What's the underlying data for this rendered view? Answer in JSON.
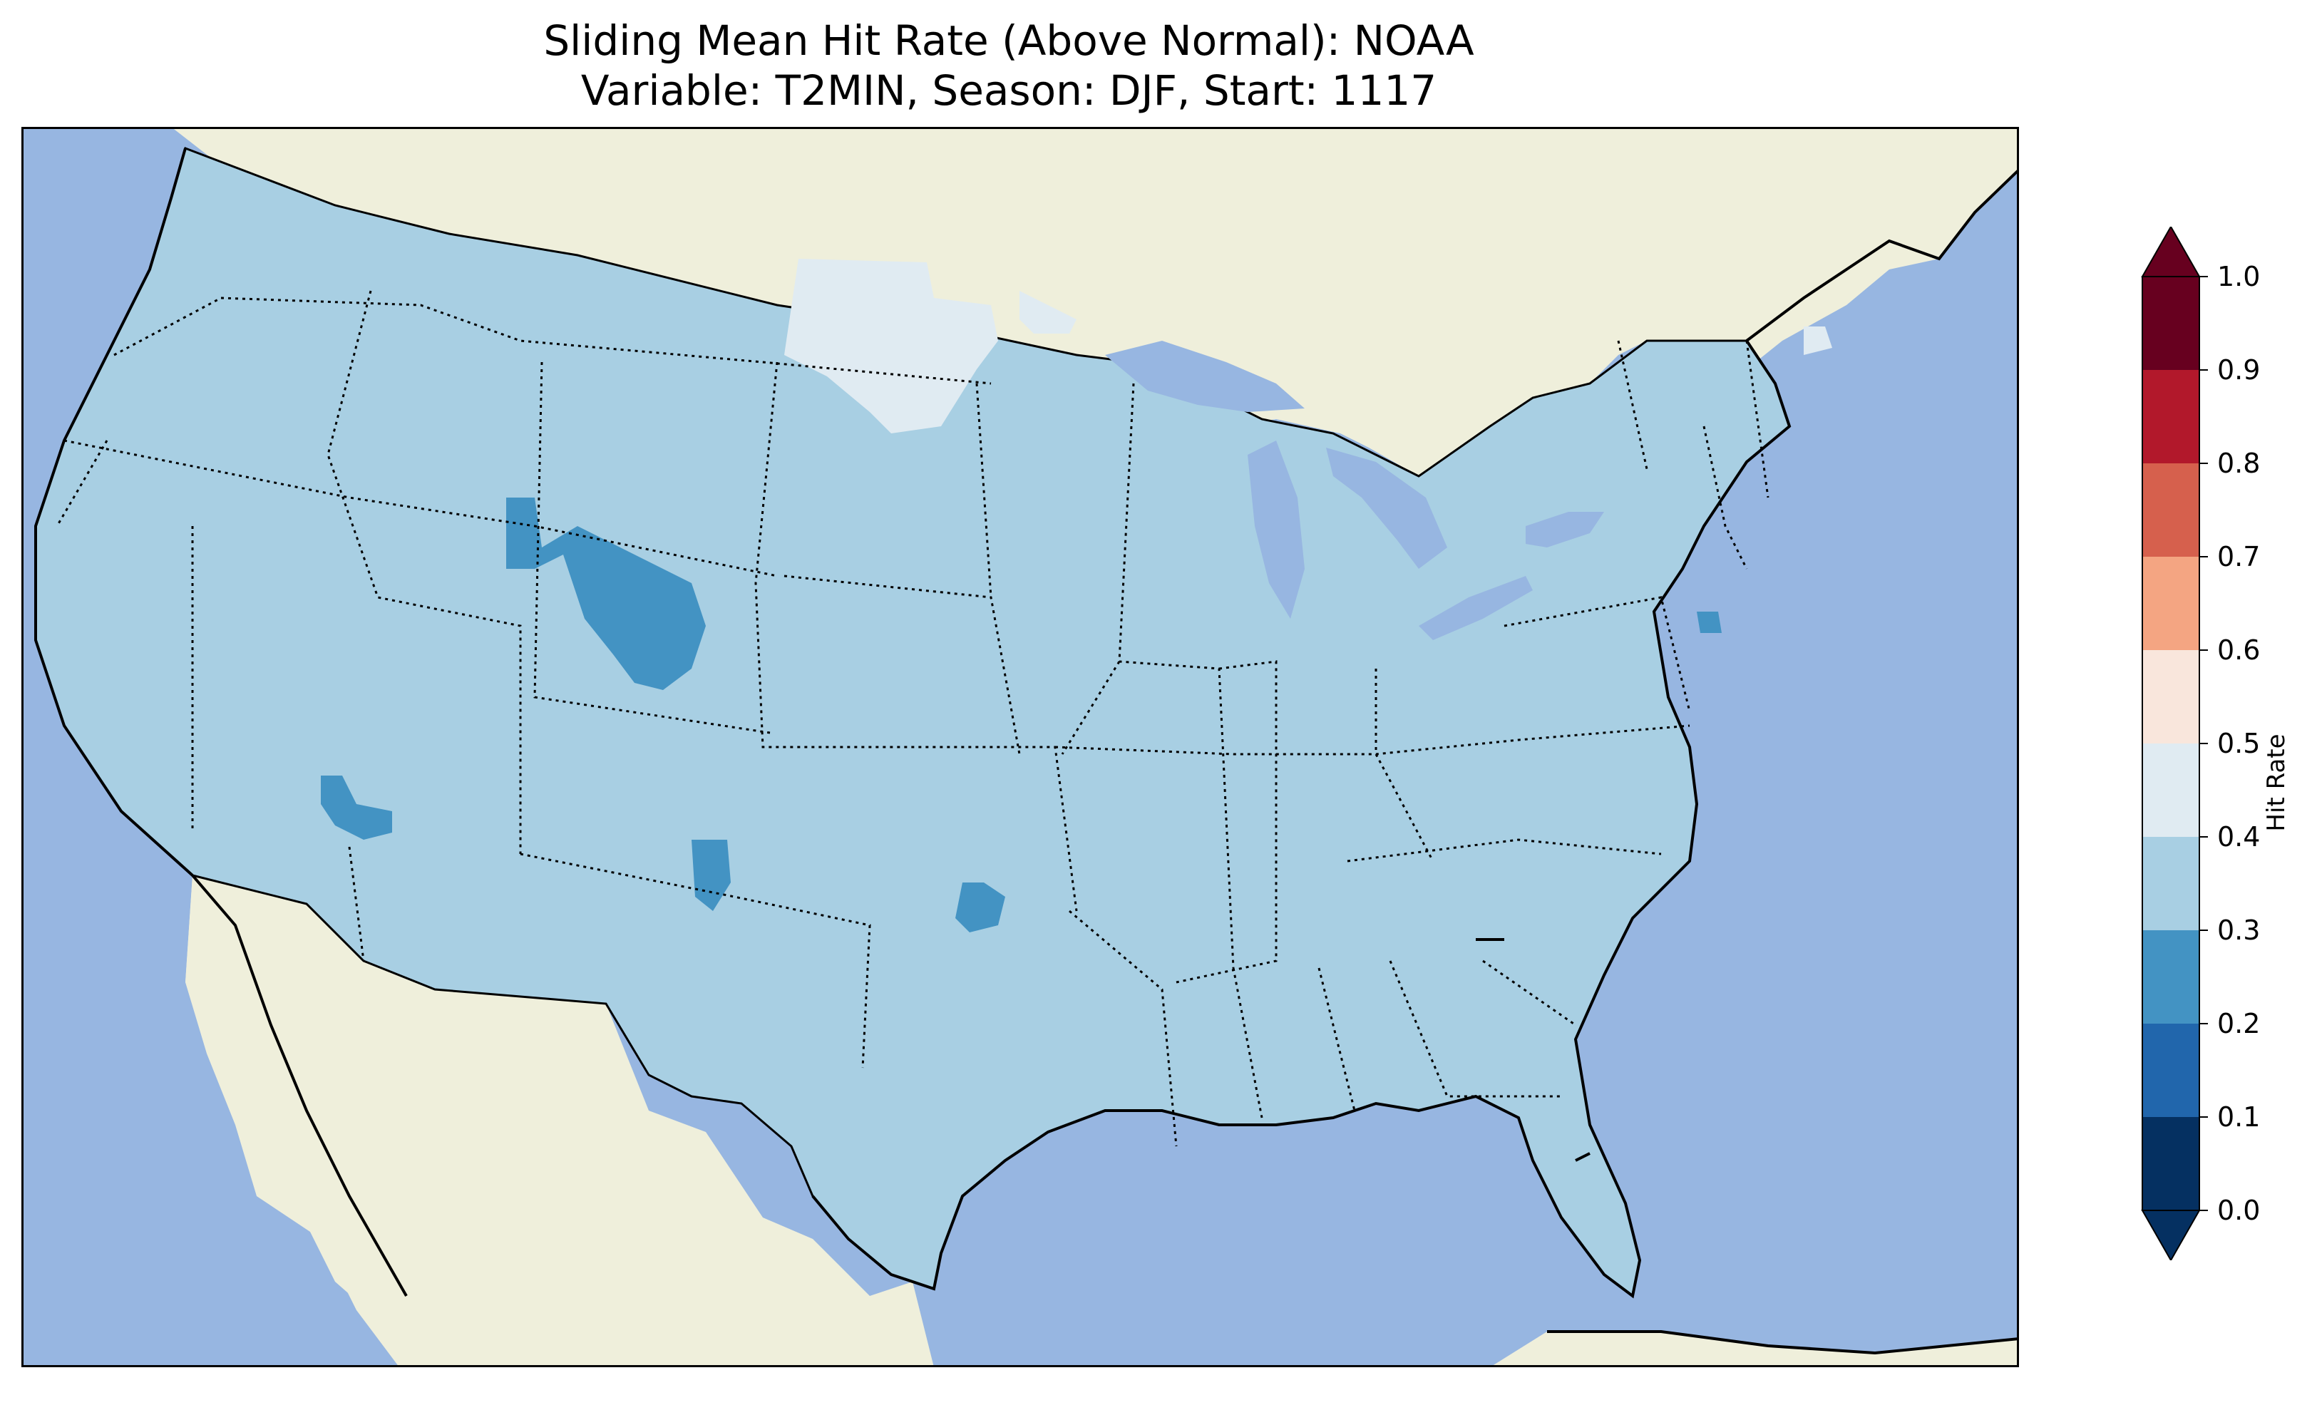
{
  "title": {
    "line1": "Sliding Mean Hit Rate (Above Normal): NOAA",
    "line2": "Variable: T2MIN, Season: DJF, Start: 1117"
  },
  "colors": {
    "ocean": "#97b6e1",
    "land": "#efefdb",
    "coast": "#000000"
  },
  "colorbar": {
    "label": "Hit Rate",
    "ticks": [
      "0.0",
      "0.1",
      "0.2",
      "0.3",
      "0.4",
      "0.5",
      "0.6",
      "0.7",
      "0.8",
      "0.9",
      "1.0"
    ],
    "bins": [
      {
        "range": [
          0.0,
          0.1
        ],
        "color": "#053061"
      },
      {
        "range": [
          0.1,
          0.2
        ],
        "color": "#2166ac"
      },
      {
        "range": [
          0.2,
          0.3
        ],
        "color": "#4393c3"
      },
      {
        "range": [
          0.3,
          0.4
        ],
        "color": "#a8cfe3"
      },
      {
        "range": [
          0.4,
          0.5
        ],
        "color": "#e0ebf2"
      },
      {
        "range": [
          0.5,
          0.6
        ],
        "color": "#f9e6dc"
      },
      {
        "range": [
          0.6,
          0.7
        ],
        "color": "#f4a582"
      },
      {
        "range": [
          0.7,
          0.8
        ],
        "color": "#d6604d"
      },
      {
        "range": [
          0.8,
          0.9
        ],
        "color": "#b2182b"
      },
      {
        "range": [
          0.9,
          1.0
        ],
        "color": "#67001f"
      }
    ],
    "extend": "both"
  },
  "chart_data": {
    "type": "heatmap",
    "region": "Contiguous United States",
    "dominant_bin": [
      0.3,
      0.4
    ],
    "areas": [
      {
        "location": "Western North Dakota",
        "bin": [
          0.4,
          0.5
        ]
      },
      {
        "location": "Northeastern Minnesota",
        "bin": [
          0.4,
          0.5
        ]
      },
      {
        "location": "Northern Maine",
        "bin": [
          0.4,
          0.5
        ]
      },
      {
        "location": "Western Wyoming / Central Colorado",
        "bin": [
          0.2,
          0.3
        ]
      },
      {
        "location": "Southern Nevada",
        "bin": [
          0.2,
          0.3
        ]
      },
      {
        "location": "Eastern New Mexico",
        "bin": [
          0.2,
          0.3
        ]
      },
      {
        "location": "Southern Oklahoma",
        "bin": [
          0.2,
          0.3
        ]
      },
      {
        "location": "New Jersey",
        "bin": [
          0.2,
          0.3
        ]
      }
    ]
  }
}
